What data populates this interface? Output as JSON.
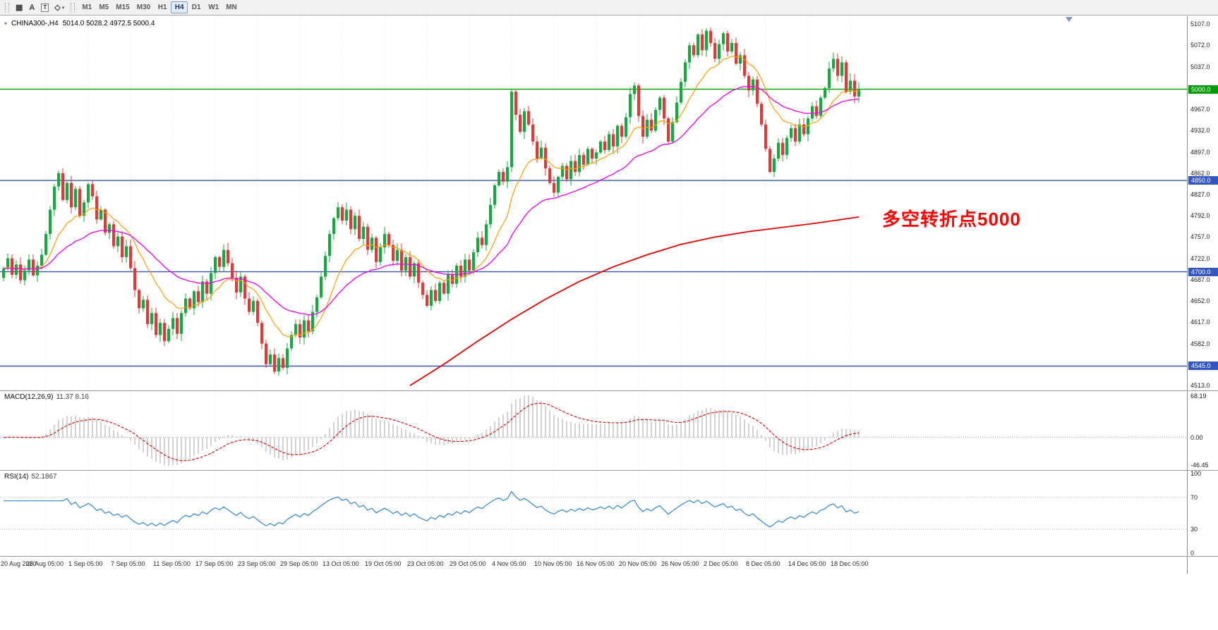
{
  "toolbar": {
    "tools": [
      {
        "id": "grid",
        "glyph": "▦"
      },
      {
        "id": "text",
        "glyph": "A"
      },
      {
        "id": "text-label",
        "glyph": "T",
        "boxed": true
      },
      {
        "id": "shapes",
        "glyph": "◇",
        "caret": "▾"
      }
    ],
    "timeframes": [
      "M1",
      "M5",
      "M15",
      "M30",
      "H1",
      "H4",
      "D1",
      "W1",
      "MN"
    ],
    "active_timeframe": "H4"
  },
  "header": {
    "symbol_title": "CHINA300-,H4",
    "ohlc": "5014.0 5028.2 4972.5 5000.4"
  },
  "annotation": {
    "text": "多空转折点5000",
    "color": "#ff0000"
  },
  "chart_data": {
    "type": "candlestick",
    "title": "CHINA300-,H4",
    "open_first": 4690,
    "closes": [
      4705,
      4722,
      4695,
      4712,
      4686,
      4702,
      4720,
      4694,
      4710,
      4728,
      4762,
      4802,
      4840,
      4862,
      4818,
      4846,
      4806,
      4836,
      4792,
      4814,
      4844,
      4824,
      4786,
      4802,
      4764,
      4778,
      4742,
      4758,
      4724,
      4742,
      4706,
      4670,
      4640,
      4654,
      4614,
      4632,
      4596,
      4616,
      4586,
      4606,
      4624,
      4598,
      4632,
      4656,
      4640,
      4668,
      4650,
      4684,
      4664,
      4698,
      4724,
      4708,
      4736,
      4714,
      4690,
      4666,
      4692,
      4656,
      4634,
      4652,
      4616,
      4582,
      4548,
      4564,
      4536,
      4558,
      4542,
      4574,
      4596,
      4614,
      4592,
      4620,
      4602,
      4634,
      4658,
      4692,
      4726,
      4762,
      4788,
      4806,
      4784,
      4802,
      4770,
      4792,
      4754,
      4774,
      4736,
      4756,
      4716,
      4740,
      4762,
      4744,
      4718,
      4736,
      4702,
      4724,
      4692,
      4714,
      4682,
      4662,
      4644,
      4670,
      4652,
      4682,
      4664,
      4696,
      4680,
      4710,
      4692,
      4720,
      4702,
      4732,
      4756,
      4744,
      4778,
      4810,
      4842,
      4864,
      4848,
      4872,
      4996,
      4958,
      4930,
      4964,
      4942,
      4914,
      4886,
      4904,
      4870,
      4846,
      4830,
      4856,
      4874,
      4852,
      4882,
      4864,
      4892,
      4876,
      4902,
      4886,
      4896,
      4914,
      4900,
      4926,
      4906,
      4940,
      4922,
      4954,
      4992,
      5006,
      4956,
      4922,
      4950,
      4932,
      4966,
      4986,
      4952,
      4914,
      4946,
      4978,
      5012,
      5044,
      5072,
      5056,
      5090,
      5064,
      5096,
      5076,
      5050,
      5074,
      5092,
      5062,
      5076,
      5042,
      5056,
      5022,
      4998,
      5016,
      4976,
      4942,
      4902,
      4864,
      4886,
      4912,
      4892,
      4920,
      4936,
      4914,
      4942,
      4926,
      4952,
      4972,
      4956,
      4986,
      5002,
      5034,
      5050,
      5022,
      5044,
      4996,
      5014,
      4988,
      5000.4
    ],
    "last_ohlc": {
      "open": 5014.0,
      "high": 5028.2,
      "low": 4972.5,
      "close": 5000.4
    },
    "colors": {
      "up": "#0fae3c",
      "down": "#ee3333",
      "grid": "#e4e4e4"
    },
    "y_axis": {
      "min": 4505,
      "max": 5120,
      "ticks": [
        5107,
        5072,
        5037,
        4967,
        4932,
        4897,
        4862,
        4827,
        4792,
        4757,
        4722,
        4687,
        4652,
        4617,
        4582,
        4513
      ]
    },
    "hlines": [
      {
        "value": 5000.0,
        "label": "5000.0",
        "color": "#009a00"
      },
      {
        "value": 4850.0,
        "label": "4850.0",
        "color": "#3456c0"
      },
      {
        "value": 4700.0,
        "label": "4700.0",
        "color": "#3456c0"
      },
      {
        "value": 4545.0,
        "label": "4545.0",
        "color": "#3456c0"
      }
    ],
    "overlays": {
      "ema_fast": {
        "period": 13,
        "color": "#ff9d00"
      },
      "ema_slow": {
        "period": 34,
        "color": "#f000f0"
      },
      "ma_long": {
        "color": "#e80000",
        "waypoints": [
          [
            96,
            4513
          ],
          [
            104,
            4548
          ],
          [
            112,
            4586
          ],
          [
            120,
            4622
          ],
          [
            128,
            4655
          ],
          [
            136,
            4684
          ],
          [
            144,
            4708
          ],
          [
            152,
            4728
          ],
          [
            160,
            4745
          ],
          [
            168,
            4757
          ],
          [
            176,
            4766
          ],
          [
            184,
            4773
          ],
          [
            192,
            4780
          ],
          [
            202,
            4790
          ]
        ]
      }
    },
    "indicators": {
      "macd": {
        "label": "MACD(12,26,9)",
        "values": "11.37 8.16",
        "fast": 12,
        "slow": 26,
        "signal": 9,
        "axis_labels": [
          "68.19",
          "0.00",
          "-46.45"
        ],
        "hist_color": "#c6c6c6",
        "signal_color": "#dd0000"
      },
      "rsi": {
        "label": "RSI(14)",
        "value": "52.1867",
        "period": 14,
        "axis_labels": [
          "100",
          "70",
          "30",
          "0"
        ],
        "levels": [
          70,
          30
        ],
        "color": "#2f86d6"
      }
    },
    "x_label_every": 10,
    "x_labels": [
      "20 Aug 2020",
      "26 Aug 05:00",
      "1 Sep 05:00",
      "7 Sep 05:00",
      "11 Sep 05:00",
      "17 Sep 05:00",
      "23 Sep 05:00",
      "29 Sep 05:00",
      "13 Oct 05:00",
      "19 Oct 05:00",
      "23 Oct 05:00",
      "29 Oct 05:00",
      "4 Nov 05:00",
      "10 Nov 05:00",
      "16 Nov 05:00",
      "20 Nov 05:00",
      "26 Nov 05:00",
      "2 Dec 05:00",
      "8 Dec 05:00",
      "14 Dec 05:00",
      "18 Dec 05:00"
    ]
  }
}
